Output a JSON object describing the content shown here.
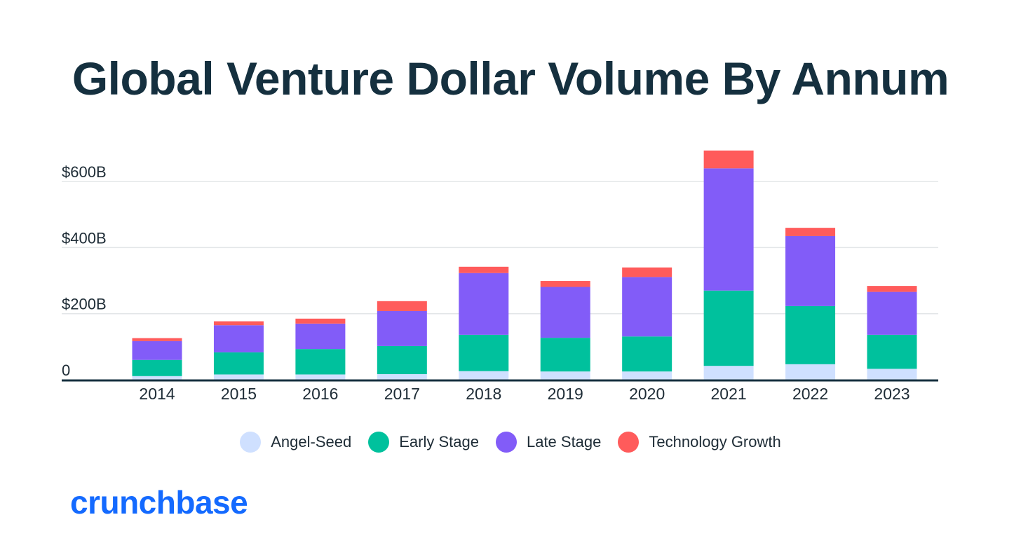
{
  "title": "Global Venture Dollar Volume By Annum",
  "brand": {
    "name": "crunchbase",
    "color": "#146aff"
  },
  "chart_data": {
    "type": "bar",
    "stacked": true,
    "title": "Global Venture Dollar Volume By Annum",
    "xlabel": "",
    "ylabel": "",
    "ylim": [
      0,
      700
    ],
    "y_unit": "$B",
    "y_ticks": [
      {
        "value": 0,
        "label": "0"
      },
      {
        "value": 200,
        "label": "$200B"
      },
      {
        "value": 400,
        "label": "$400B"
      },
      {
        "value": 600,
        "label": "$600B"
      }
    ],
    "grid": true,
    "legend_position": "bottom-center",
    "categories": [
      "2014",
      "2015",
      "2016",
      "2017",
      "2018",
      "2019",
      "2020",
      "2021",
      "2022",
      "2023"
    ],
    "series": [
      {
        "name": "Angel-Seed",
        "color": "#cfe0ff",
        "values": [
          11,
          16,
          16,
          17,
          26,
          25,
          25,
          42,
          47,
          33
        ]
      },
      {
        "name": "Early Stage",
        "color": "#00c19d",
        "values": [
          49,
          67,
          77,
          85,
          110,
          102,
          106,
          228,
          176,
          103
        ]
      },
      {
        "name": "Late Stage",
        "color": "#825cf8",
        "values": [
          57,
          82,
          77,
          106,
          187,
          154,
          180,
          370,
          212,
          130
        ]
      },
      {
        "name": "Technology Growth",
        "color": "#ff5b5b",
        "values": [
          9,
          12,
          15,
          30,
          19,
          18,
          29,
          54,
          25,
          18
        ]
      }
    ]
  }
}
